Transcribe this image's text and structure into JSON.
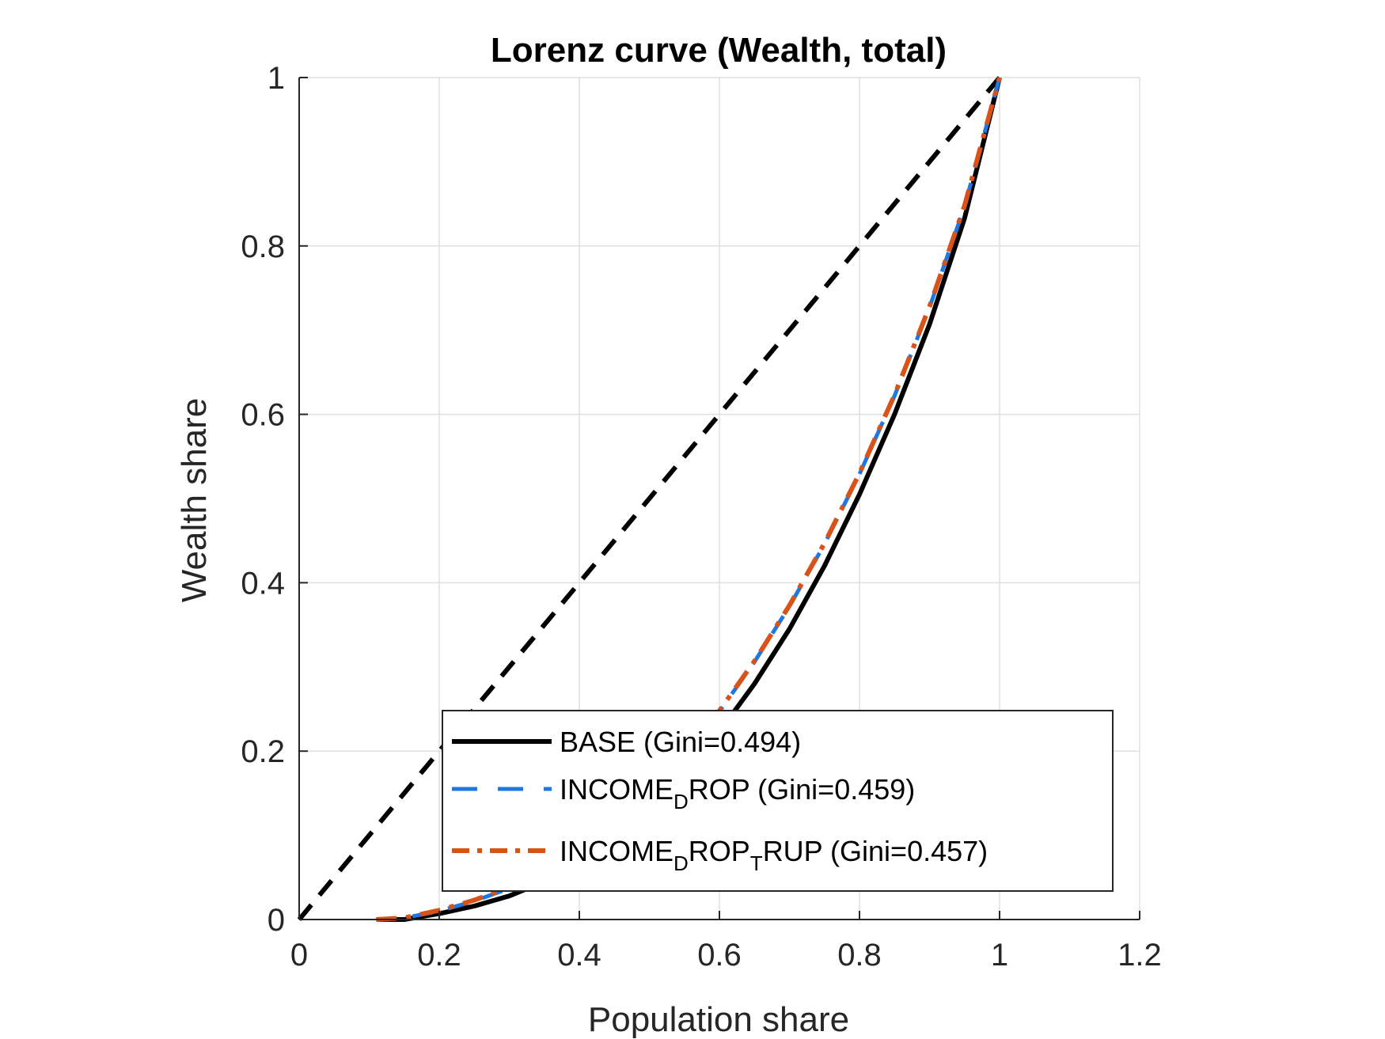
{
  "chart_data": {
    "type": "line",
    "title": "Lorenz curve (Wealth, total)",
    "xlabel": "Population share",
    "ylabel": "Wealth share",
    "xlim": [
      0,
      1.2
    ],
    "ylim": [
      0,
      1
    ],
    "xticks": [
      "0",
      "0.2",
      "0.4",
      "0.6",
      "0.8",
      "1",
      "1.2"
    ],
    "yticks": [
      "0",
      "0.2",
      "0.4",
      "0.6",
      "0.8",
      "1"
    ],
    "grid": true,
    "legend_position": "bottom-right",
    "equality_line": {
      "x": [
        0,
        1
      ],
      "y": [
        0,
        1
      ],
      "color": "#000000",
      "style": "dashed"
    },
    "series": [
      {
        "name": "BASE (Gini=0.494)",
        "legend": {
          "prefix": "BASE (Gini=0.494)",
          "sub1": "",
          "mid": "",
          "sub2": "",
          "suffix": ""
        },
        "color": "#000000",
        "style": "solid",
        "x": [
          0.11,
          0.15,
          0.2,
          0.25,
          0.3,
          0.35,
          0.4,
          0.45,
          0.5,
          0.55,
          0.6,
          0.65,
          0.7,
          0.75,
          0.8,
          0.85,
          0.9,
          0.95,
          1.0
        ],
        "y": [
          0.0,
          0.0,
          0.007,
          0.016,
          0.028,
          0.045,
          0.068,
          0.097,
          0.132,
          0.174,
          0.223,
          0.28,
          0.345,
          0.42,
          0.505,
          0.6,
          0.707,
          0.833,
          1.0
        ]
      },
      {
        "name": "INCOME_DROP (Gini=0.459)",
        "legend": {
          "prefix": "INCOME",
          "sub1": "D",
          "mid": "ROP",
          "sub2": "",
          "suffix": " (Gini=0.459)"
        },
        "color": "#1f77e0",
        "style": "dashed",
        "x": [
          0.11,
          0.15,
          0.2,
          0.25,
          0.3,
          0.35,
          0.4,
          0.45,
          0.5,
          0.55,
          0.6,
          0.65,
          0.7,
          0.75,
          0.8,
          0.85,
          0.9,
          0.95,
          1.0
        ],
        "y": [
          0.0,
          0.002,
          0.01,
          0.022,
          0.037,
          0.056,
          0.082,
          0.113,
          0.151,
          0.196,
          0.247,
          0.306,
          0.372,
          0.446,
          0.529,
          0.622,
          0.727,
          0.847,
          1.0
        ]
      },
      {
        "name": "INCOME_DROP_TRUP (Gini=0.457)",
        "legend": {
          "prefix": "INCOME",
          "sub1": "D",
          "mid": "ROP",
          "sub2": "T",
          "suffix": "RUP (Gini=0.457)"
        },
        "color": "#d95319",
        "style": "dashdot",
        "x": [
          0.11,
          0.15,
          0.2,
          0.25,
          0.3,
          0.35,
          0.4,
          0.45,
          0.5,
          0.55,
          0.6,
          0.65,
          0.7,
          0.75,
          0.8,
          0.85,
          0.9,
          0.95,
          1.0
        ],
        "y": [
          0.0,
          0.002,
          0.011,
          0.023,
          0.038,
          0.057,
          0.083,
          0.114,
          0.152,
          0.197,
          0.248,
          0.307,
          0.373,
          0.447,
          0.53,
          0.623,
          0.728,
          0.848,
          1.0
        ]
      }
    ]
  }
}
